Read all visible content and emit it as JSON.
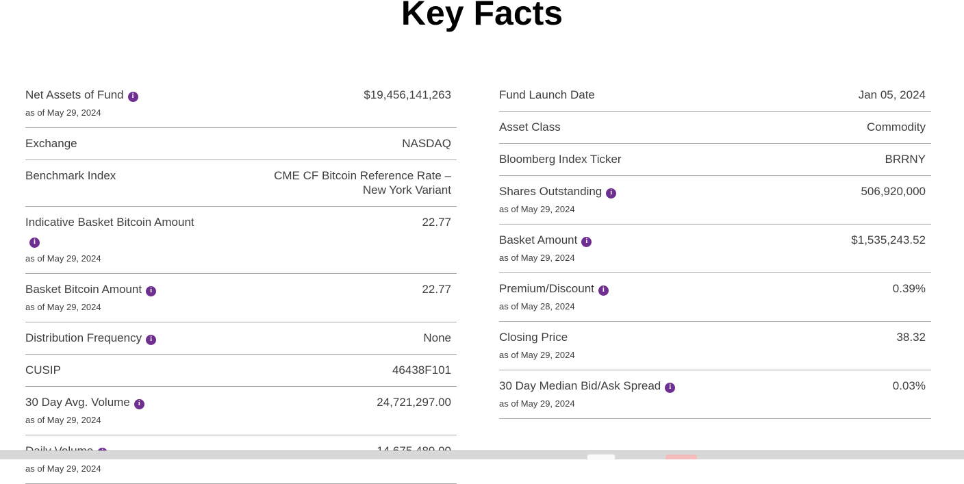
{
  "page": {
    "title": "Key Facts"
  },
  "colors": {
    "accent_purple": "#6E2F91",
    "divider_gray": "#A8A8A8",
    "text_gray": "#3E3E3E",
    "bottom_bar_gray": "#D8D8D8",
    "overlay_button_pink": "#F6BCBC"
  },
  "icons": {
    "info": "i"
  },
  "left": {
    "rows": [
      {
        "label": "Net Assets of Fund",
        "has_info": true,
        "as_of": "as of May 29, 2024",
        "value": "$19,456,141,263"
      },
      {
        "label": "Exchange",
        "value": "NASDAQ"
      },
      {
        "label": "Benchmark Index",
        "value": "CME CF Bitcoin Reference Rate –",
        "value2": "New York Variant"
      },
      {
        "label": "Indicative Basket Bitcoin Amount",
        "has_info": true,
        "as_of": "as of May 29, 2024",
        "value": "22.77"
      },
      {
        "label": "Basket Bitcoin Amount",
        "has_info": true,
        "as_of": "as of May 29, 2024",
        "value": "22.77"
      },
      {
        "label": "Distribution Frequency",
        "has_info": true,
        "value": "None"
      },
      {
        "label": "CUSIP",
        "value": "46438F101"
      },
      {
        "label": "30 Day Avg. Volume",
        "has_info": true,
        "as_of": "as of May 29, 2024",
        "value": "24,721,297.00"
      },
      {
        "label": "Daily Volume",
        "has_info": true,
        "as_of": "as of May 29, 2024",
        "value": "14,675,489.00"
      }
    ]
  },
  "right": {
    "rows": [
      {
        "label": "Fund Launch Date",
        "value": "Jan 05, 2024"
      },
      {
        "label": "Asset Class",
        "value": "Commodity"
      },
      {
        "label": "Bloomberg Index Ticker",
        "value": "BRRNY"
      },
      {
        "label": "Shares Outstanding",
        "has_info": true,
        "as_of": "as of May 29, 2024",
        "value": "506,920,000"
      },
      {
        "label": "Basket Amount",
        "has_info": true,
        "as_of": "as of May 29, 2024",
        "value": "$1,535,243.52"
      },
      {
        "label": "Premium/Discount",
        "has_info": true,
        "as_of": "as of May 28, 2024",
        "value": "0.39%"
      },
      {
        "label": "Closing Price",
        "as_of": "as of May 29, 2024",
        "value": "38.32"
      },
      {
        "label": "30 Day Median Bid/Ask Spread",
        "has_info": true,
        "as_of": "as of May 29, 2024",
        "value": "0.03%"
      }
    ]
  }
}
